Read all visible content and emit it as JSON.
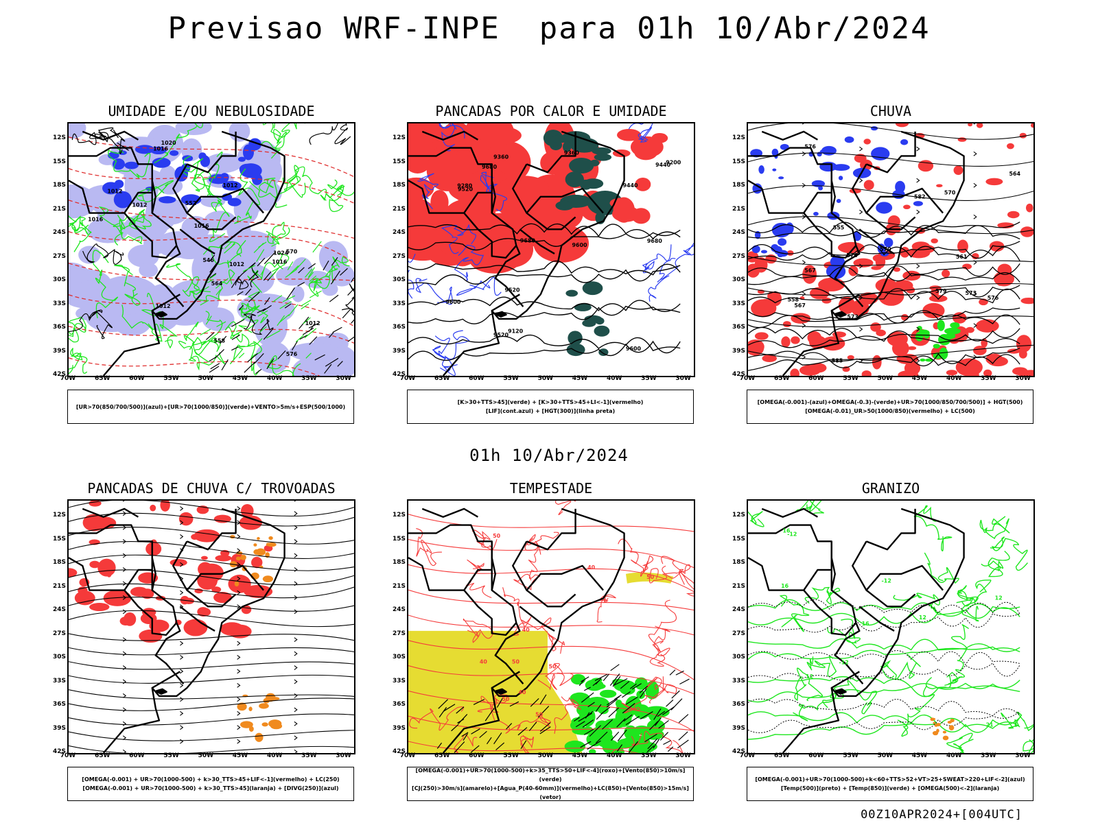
{
  "page": {
    "title": "Previsao WRF-INPE  para 01h 10/Abr/2024",
    "mid_title": "01h 10/Abr/2024",
    "footer": "00Z10APR2024+[004UTC]"
  },
  "axes": {
    "lat_labels": [
      "12S",
      "15S",
      "18S",
      "21S",
      "24S",
      "27S",
      "30S",
      "33S",
      "36S",
      "39S",
      "42S"
    ],
    "lon_labels": [
      "70W",
      "65W",
      "60W",
      "55W",
      "50W",
      "45W",
      "40W",
      "35W",
      "30W"
    ]
  },
  "colors": {
    "blue": "#2a3cf0",
    "lightblue": "#b9b9f2",
    "green": "#1ee61e",
    "red": "#f53a3a",
    "darkteal": "#1f4f4a",
    "yellow": "#e6dc32",
    "orange": "#f08a1e",
    "black": "#000000"
  },
  "panels": [
    {
      "id": "umidade",
      "title": "UMIDADE E/OU NEBULOSIDADE",
      "legend": [
        "[UR>70(850/700/500)](azul)+[UR>70(1000/850)](verde)+VENTO>5m/s+ESP(500/1000)"
      ],
      "contour_labels": [
        "1012",
        "1012",
        "1016",
        "1016",
        "1012",
        "1012",
        "1016",
        "1012",
        "1012",
        "1016",
        "1020",
        "1024",
        "576",
        "570",
        "564",
        "558",
        "552",
        "546"
      ]
    },
    {
      "id": "pancadas_calor",
      "title": "PANCADAS POR CALOR E UMIDADE",
      "legend": [
        "[K>30+TTS>45](verde) + [K>30+TTS>45+LI<-1](vermelho)",
        "[LIF](cont.azul) + [HGT(300)](linha preta)"
      ],
      "contour_labels": [
        "9680",
        "9680",
        "9680",
        "9600",
        "9600",
        "9520",
        "9600",
        "9520",
        "9520",
        "9440",
        "9440",
        "9360",
        "9280",
        "9200",
        "9120",
        "9360"
      ]
    },
    {
      "id": "chuva",
      "title": "CHUVA",
      "legend": [
        "[OMEGA(-0.001)-(azul)+OMEGA(-0.3)-(verde)+UR>70(1000/850/700/500)] + HGT(500)",
        "[OMEGA(-0.01)_UR>50(1000/850)(vermelho) + LC(500)"
      ],
      "contour_labels": [
        "585",
        "579",
        "576",
        "573",
        "576",
        "570",
        "567",
        "564",
        "561",
        "558",
        "555",
        "573",
        "570",
        "567",
        "576",
        "582"
      ]
    },
    {
      "id": "pancadas_trovoadas",
      "title": "PANCADAS DE CHUVA C/ TROVOADAS",
      "legend": [
        "[OMEGA(-0.001) + UR>70(1000-500) + k>30_TTS>45+LIF<-1](vermelho) + LC(250)",
        "[OMEGA(-0.001) + UR>70(1000-500) + k>30_TTS>45](laranja) + [DIVG(250)](azul)"
      ],
      "contour_labels": []
    },
    {
      "id": "tempestade",
      "title": "TEMPESTADE",
      "legend": [
        "[OMEGA(-0.001)+UR>70(1000-500)+k>35_TTS>50+LIF<-4](roxo)+[Vento(850)>10m/s](verde)",
        "[CJ(250)>30m/s](amarelo)+[Agua_P(40-60mm)](vermelho)+LC(850)+[Vento(850)>15m/s](vetor)"
      ],
      "contour_labels": [
        "50",
        "50",
        "40",
        "40",
        "50",
        "50",
        "50",
        "40",
        "40",
        "50"
      ]
    },
    {
      "id": "granizo",
      "title": "GRANIZO",
      "legend": [
        "[OMEGA(-0.001)+UR>70(1000-500)+k<60+TTS>52+VT>25+SWEAT>220+LIF<-2](azul)",
        "[Temp(500)](preto) + [Temp(850)](verde) + [OMEGA(500)<-2](laranja)"
      ],
      "contour_labels": [
        "16",
        "16",
        "12",
        "12",
        "-12",
        "-12",
        "21",
        "16",
        "-12",
        "12"
      ]
    }
  ]
}
